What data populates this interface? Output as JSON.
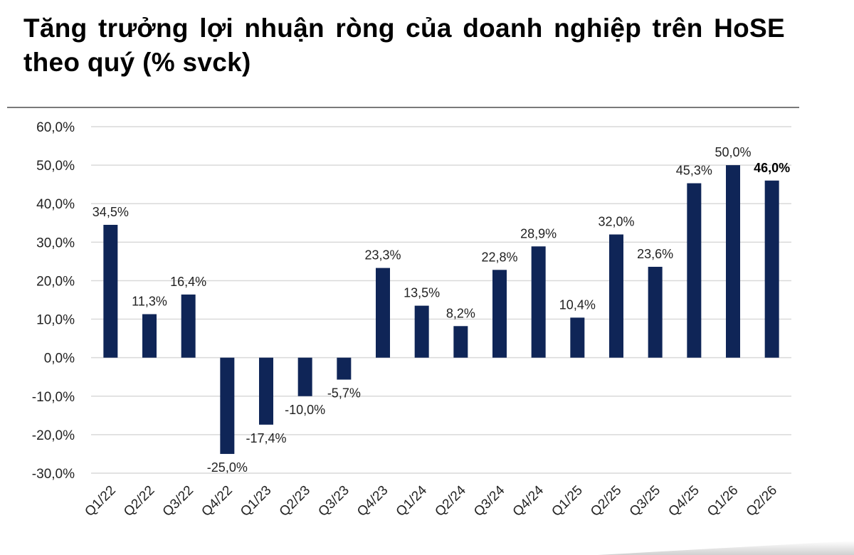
{
  "title": "Tăng trưởng lợi nhuận ròng của doanh nghiệp trên HoSE theo quý (% svck)",
  "chart_data": {
    "type": "bar",
    "title": "Tăng trưởng lợi nhuận ròng của doanh nghiệp trên HoSE theo quý (% svck)",
    "xlabel": "",
    "ylabel": "",
    "categories": [
      "Q1/22",
      "Q2/22",
      "Q3/22",
      "Q4/22",
      "Q1/23",
      "Q2/23",
      "Q3/23",
      "Q4/23",
      "Q1/24",
      "Q2/24",
      "Q3/24",
      "Q4/24",
      "Q1/25",
      "Q2/25",
      "Q3/25",
      "Q4/25",
      "Q1/26",
      "Q2/26"
    ],
    "values": [
      34.5,
      11.3,
      16.4,
      -25.0,
      -17.4,
      -10.0,
      -5.7,
      23.3,
      13.5,
      8.2,
      22.8,
      28.9,
      10.4,
      32.0,
      23.6,
      45.3,
      50.0,
      46.0
    ],
    "data_labels": [
      "34,5%",
      "11,3%",
      "16,4%",
      "-25,0%",
      "-17,4%",
      "-10,0%",
      "-5,7%",
      "23,3%",
      "13,5%",
      "8,2%",
      "22,8%",
      "28,9%",
      "10,4%",
      "32,0%",
      "23,6%",
      "45,3%",
      "50,0%",
      "46,0%"
    ],
    "highlight_label_index": 17,
    "ylim": [
      -30,
      60
    ],
    "yticks": [
      60,
      50,
      40,
      30,
      20,
      10,
      0,
      -10,
      -20,
      -30
    ],
    "ytick_labels": [
      "60,0%",
      "50,0%",
      "40,0%",
      "30,0%",
      "20,0%",
      "10,0%",
      "0,0%",
      "-10,0%",
      "-20,0%",
      "-30,0%"
    ],
    "grid": true,
    "legend": "none",
    "bar_color": "#0f2557",
    "grid_color": "#d9d9d9"
  }
}
